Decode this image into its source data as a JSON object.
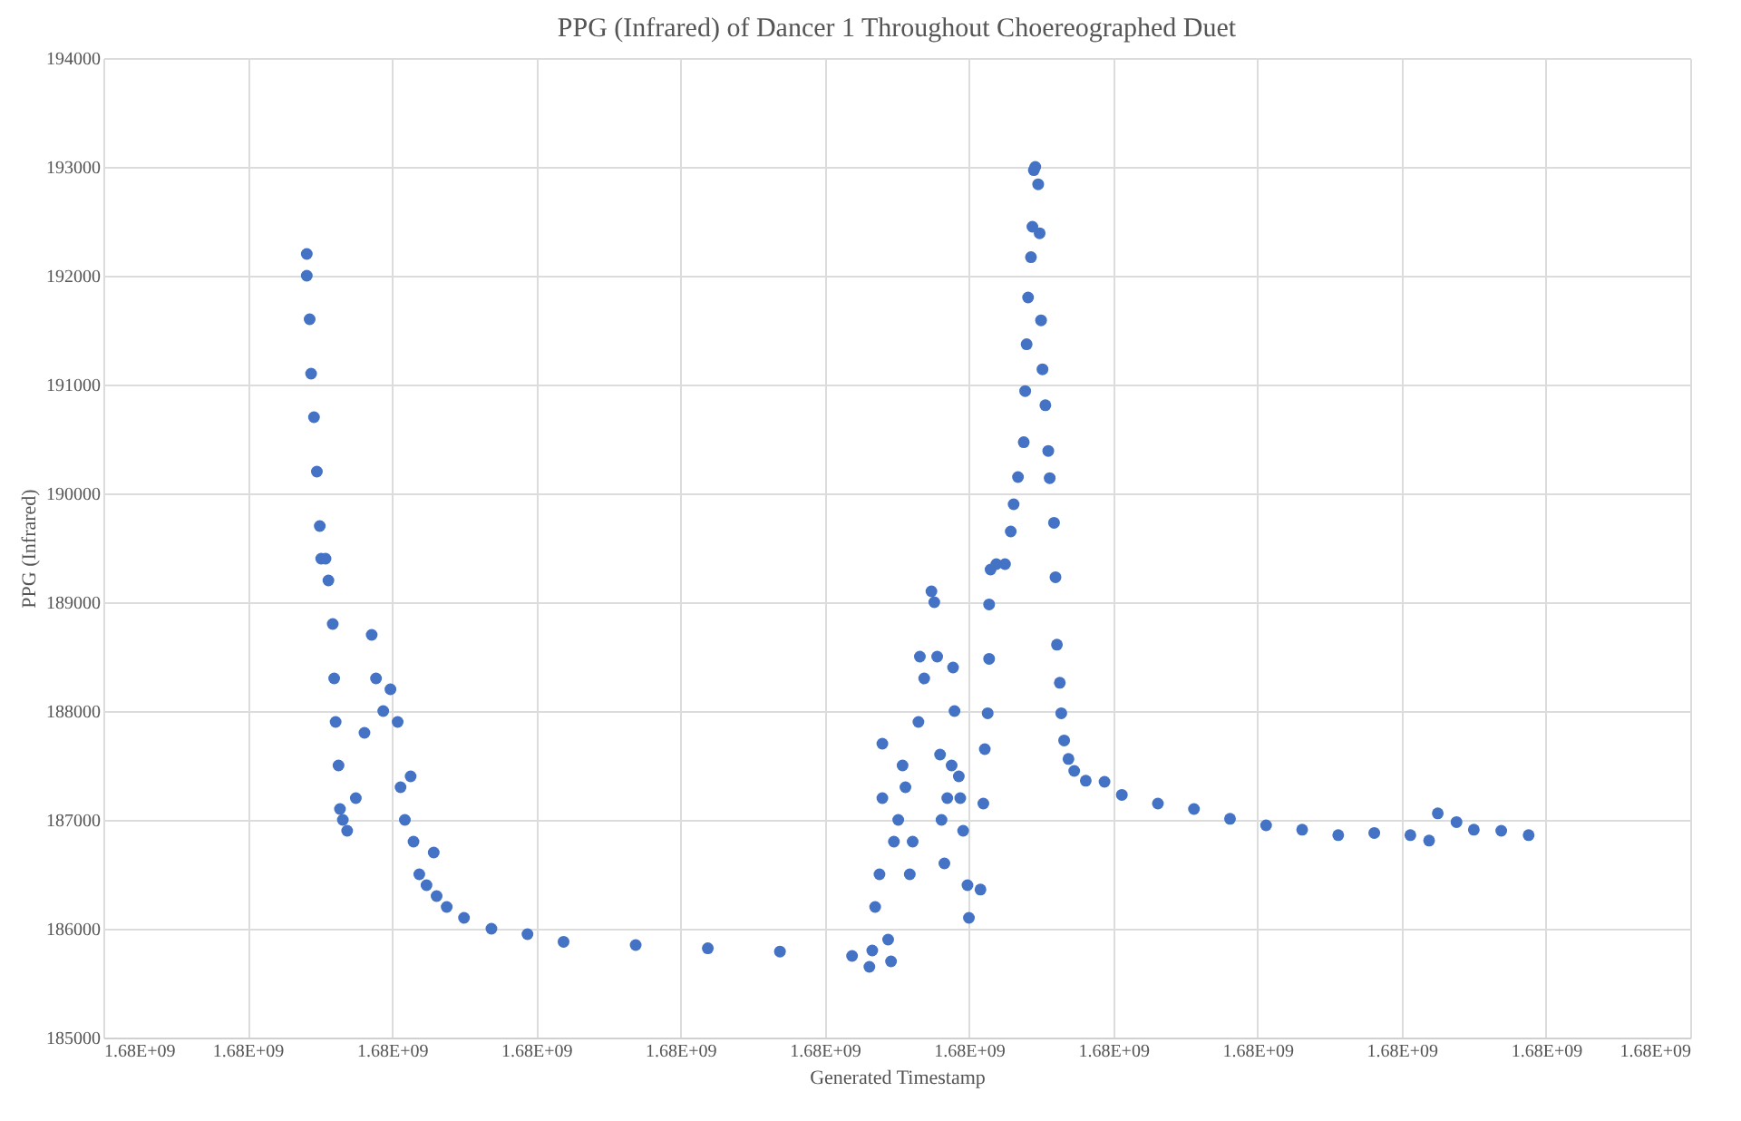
{
  "chart_data": {
    "type": "scatter",
    "title": "PPG (Infrared) of Dancer 1 Throughout Choereographed Duet",
    "xlabel": "Generated Timestamp",
    "ylabel": "PPG (Infrared)",
    "marker": "circle",
    "grid": true,
    "xlim": [
      1680000000,
      1680001100
    ],
    "xticks": [
      {
        "value": 1680000000,
        "label": "1.68E+09"
      },
      {
        "value": 1680000100,
        "label": "1.68E+09"
      },
      {
        "value": 1680000200,
        "label": "1.68E+09"
      },
      {
        "value": 1680000300,
        "label": "1.68E+09"
      },
      {
        "value": 1680000400,
        "label": "1.68E+09"
      },
      {
        "value": 1680000500,
        "label": "1.68E+09"
      },
      {
        "value": 1680000600,
        "label": "1.68E+09"
      },
      {
        "value": 1680000700,
        "label": "1.68E+09"
      },
      {
        "value": 1680000800,
        "label": "1.68E+09"
      },
      {
        "value": 1680000900,
        "label": "1.68E+09"
      },
      {
        "value": 1680001000,
        "label": "1.68E+09"
      },
      {
        "value": 1680001100,
        "label": "1.68E+09"
      }
    ],
    "ylim": [
      185000,
      194000
    ],
    "yticks": [
      185000,
      186000,
      187000,
      188000,
      189000,
      190000,
      191000,
      192000,
      193000,
      194000
    ],
    "x": [
      1680000141,
      1680000141,
      1680000143,
      1680000144,
      1680000146,
      1680000148,
      1680000150,
      1680000151,
      1680000154,
      1680000156,
      1680000159,
      1680000160,
      1680000161,
      1680000163,
      1680000164,
      1680000166,
      1680000169,
      1680000175,
      1680000181,
      1680000186,
      1680000189,
      1680000194,
      1680000199,
      1680000204,
      1680000206,
      1680000209,
      1680000213,
      1680000215,
      1680000219,
      1680000224,
      1680000229,
      1680000231,
      1680000238,
      1680000250,
      1680000269,
      1680000294,
      1680000319,
      1680000369,
      1680000419,
      1680000469,
      1680000519,
      1680000531,
      1680000533,
      1680000535,
      1680000538,
      1680000540,
      1680000540,
      1680000544,
      1680000546,
      1680000548,
      1680000551,
      1680000554,
      1680000556,
      1680000559,
      1680000561,
      1680000565,
      1680000566,
      1680000569,
      1680000574,
      1680000576,
      1680000578,
      1680000580,
      1680000581,
      1680000583,
      1680000585,
      1680000588,
      1680000589,
      1680000590,
      1680000593,
      1680000594,
      1680000596,
      1680000599,
      1680000600,
      1680000608,
      1680000610,
      1680000611,
      1680000613,
      1680000614,
      1680000614,
      1680000615,
      1680000619,
      1680000625,
      1680000629,
      1680000631,
      1680000634,
      1680000638,
      1680000639,
      1680000640,
      1680000641,
      1680000643,
      1680000644,
      1680000645,
      1680000646,
      1680000648,
      1680000649,
      1680000650,
      1680000651,
      1680000653,
      1680000655,
      1680000656,
      1680000659,
      1680000660,
      1680000661,
      1680000663,
      1680000664,
      1680000666,
      1680000669,
      1680000673,
      1680000681,
      1680000694,
      1680000706,
      1680000731,
      1680000756,
      1680000781,
      1680000806,
      1680000831,
      1680000856,
      1680000881,
      1680000906,
      1680000919,
      1680000925,
      1680000938,
      1680000950,
      1680000969,
      1680000988
    ],
    "series": [
      {
        "color": "#4472c4",
        "values": [
          192200,
          192000,
          191600,
          191100,
          190700,
          190200,
          189700,
          189400,
          189400,
          189200,
          188800,
          188300,
          187900,
          187500,
          187100,
          187000,
          186900,
          187200,
          187800,
          188700,
          188300,
          188000,
          188200,
          187900,
          187300,
          187000,
          187400,
          186800,
          186500,
          186400,
          186700,
          186300,
          186200,
          186100,
          186000,
          185950,
          185880,
          185850,
          185820,
          185790,
          185750,
          185650,
          185800,
          186200,
          186500,
          187200,
          187700,
          185900,
          185700,
          186800,
          187000,
          187500,
          187300,
          186500,
          186800,
          187900,
          188500,
          188300,
          189100,
          189000,
          188500,
          187600,
          187000,
          186600,
          187200,
          187500,
          188400,
          188000,
          187400,
          187200,
          186900,
          186400,
          186100,
          186360,
          187150,
          187650,
          187980,
          188480,
          188980,
          189300,
          189350,
          189350,
          189650,
          189900,
          190150,
          190470,
          190940,
          191370,
          191800,
          192170,
          192450,
          192970,
          193000,
          192840,
          192390,
          191590,
          191140,
          190810,
          190390,
          190140,
          189730,
          189230,
          188610,
          188260,
          187980,
          187730,
          187560,
          187450,
          187360,
          187350,
          187230,
          187150,
          187100,
          187010,
          186950,
          186910,
          186860,
          186880,
          186860,
          186810,
          187060,
          186980,
          186910,
          186900,
          186860
        ]
      }
    ]
  }
}
